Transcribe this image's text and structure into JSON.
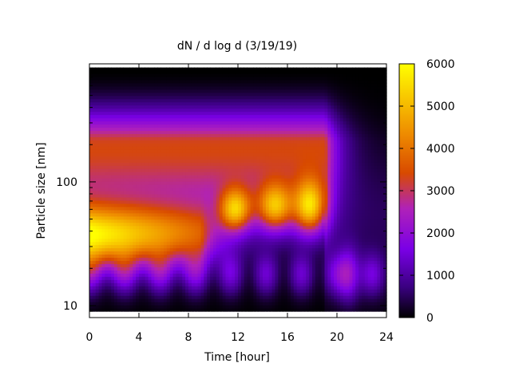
{
  "chart_data": {
    "type": "heatmap",
    "title": "dN / d log d (3/19/19)",
    "xlabel": "Time [hour]",
    "ylabel": "Particle size [nm]",
    "xlim": [
      0,
      24
    ],
    "ylim_nm": [
      8,
      900
    ],
    "y_scale": "log",
    "x_ticks": [
      {
        "value": 0,
        "label": "0"
      },
      {
        "value": 4,
        "label": "4"
      },
      {
        "value": 8,
        "label": "8"
      },
      {
        "value": 12,
        "label": "12"
      },
      {
        "value": 16,
        "label": "16"
      },
      {
        "value": 20,
        "label": "20"
      },
      {
        "value": 24,
        "label": "24"
      }
    ],
    "y_ticks": [
      {
        "value": 10,
        "label": "10"
      },
      {
        "value": 100,
        "label": "100"
      }
    ],
    "colorbar": {
      "range": [
        0,
        6000
      ],
      "ticks": [
        {
          "value": 0,
          "label": "0"
        },
        {
          "value": 1000,
          "label": "1000"
        },
        {
          "value": 2000,
          "label": "2000"
        },
        {
          "value": 3000,
          "label": "3000"
        },
        {
          "value": 4000,
          "label": "4000"
        },
        {
          "value": 5000,
          "label": "5000"
        },
        {
          "value": 6000,
          "label": "6000"
        }
      ],
      "palette": [
        "#000000",
        "#3a0080",
        "#7a00e6",
        "#b022b8",
        "#d84a00",
        "#ee8a00",
        "#f8c800",
        "#ffff00"
      ]
    },
    "grid": false,
    "notes_visual": "Size distribution: a high-concentration mode near 30-60 nm early in the day (peaking ~5500 near hour 0-3), followed by pulses near 60 nm around hours 12, 15 and 18 (~3500-4000); concentrations drop sharply after ~19 h."
  }
}
